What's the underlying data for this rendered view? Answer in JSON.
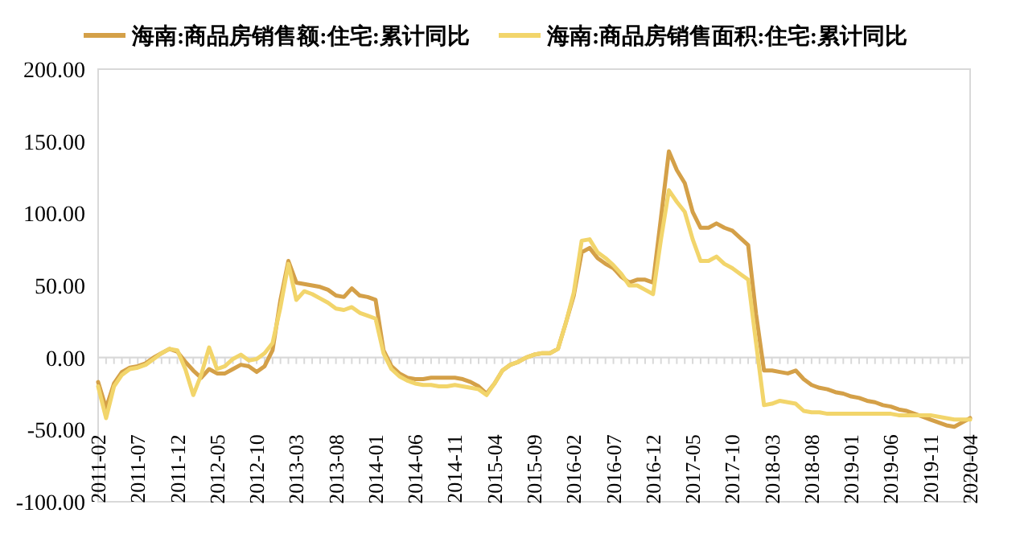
{
  "chart_data": {
    "type": "line",
    "legend": "top",
    "categories": [
      "2011-02",
      null,
      null,
      null,
      null,
      "2011-07",
      null,
      null,
      null,
      null,
      "2011-12",
      null,
      null,
      null,
      null,
      "2012-05",
      null,
      null,
      null,
      null,
      "2012-10",
      null,
      null,
      null,
      null,
      "2013-03",
      null,
      null,
      null,
      null,
      "2013-08",
      null,
      null,
      null,
      null,
      "2014-01",
      null,
      null,
      null,
      null,
      "2014-06",
      null,
      null,
      null,
      null,
      "2014-11",
      null,
      null,
      null,
      null,
      "2015-04",
      null,
      null,
      null,
      null,
      "2015-09",
      null,
      null,
      null,
      null,
      "2016-02",
      null,
      null,
      null,
      null,
      "2016-07",
      null,
      null,
      null,
      null,
      "2016-12",
      null,
      null,
      null,
      null,
      "2017-05",
      null,
      null,
      null,
      null,
      "2017-10",
      null,
      null,
      null,
      null,
      "2018-03",
      null,
      null,
      null,
      null,
      "2018-08",
      null,
      null,
      null,
      null,
      "2019-01",
      null,
      null,
      null,
      null,
      "2019-06",
      null,
      null,
      null,
      null,
      "2019-11",
      null,
      null,
      null,
      null,
      "2020-04"
    ],
    "ylim": [
      -100,
      200
    ],
    "yticks": [
      {
        "value": -100,
        "label": "-100.00"
      },
      {
        "value": -50,
        "label": "-50.00"
      },
      {
        "value": 0,
        "label": "0.00"
      },
      {
        "value": 50,
        "label": "50.00"
      },
      {
        "value": 100,
        "label": "100.00"
      },
      {
        "value": 150,
        "label": "150.00"
      },
      {
        "value": 200,
        "label": "200.00"
      }
    ],
    "series": [
      {
        "name": "海南:商品房销售额:住宅:累计同比",
        "color": "#d4a048",
        "values": [
          -17,
          -35,
          -18,
          -10,
          -7,
          -6,
          -4,
          0,
          3,
          6,
          4,
          -3,
          -9,
          -14,
          -8,
          -11,
          -11,
          -8,
          -5,
          -6,
          -10,
          -6,
          5,
          40,
          67,
          52,
          51,
          50,
          49,
          47,
          43,
          42,
          48,
          43,
          42,
          40,
          5,
          -6,
          -11,
          -14,
          -15,
          -15,
          -14,
          -14,
          -14,
          -14,
          -15,
          -17,
          -20,
          -25,
          -18,
          -9,
          -5,
          -3,
          0,
          2,
          3,
          3,
          6,
          24,
          43,
          73,
          76,
          69,
          65,
          62,
          56,
          52,
          54,
          54,
          52,
          97,
          143,
          130,
          121,
          101,
          90,
          90,
          93,
          90,
          88,
          83,
          78,
          30,
          -9,
          -9,
          -10,
          -11,
          -9,
          -15,
          -19,
          -21,
          -22,
          -24,
          -25,
          -27,
          -28,
          -30,
          -31,
          -33,
          -34,
          -36,
          -37,
          -39,
          -41,
          -43,
          -45,
          -47,
          -48,
          -45,
          -42
        ]
      },
      {
        "name": "海南:商品房销售面积:住宅:累计同比",
        "color": "#f2d56b",
        "values": [
          -20,
          -42,
          -20,
          -12,
          -8,
          -7,
          -5,
          -1,
          3,
          6,
          5,
          -8,
          -26,
          -12,
          7,
          -8,
          -6,
          -1,
          2,
          -2,
          -1,
          3,
          10,
          35,
          65,
          40,
          46,
          44,
          41,
          38,
          34,
          33,
          35,
          31,
          29,
          27,
          3,
          -8,
          -13,
          -16,
          -18,
          -19,
          -19,
          -20,
          -20,
          -19,
          -20,
          -21,
          -22,
          -26,
          -18,
          -9,
          -5,
          -3,
          0,
          2,
          3,
          3,
          6,
          24,
          45,
          81,
          82,
          73,
          69,
          64,
          58,
          50,
          50,
          47,
          44,
          82,
          116,
          108,
          101,
          82,
          67,
          67,
          70,
          65,
          62,
          58,
          54,
          10,
          -33,
          -32,
          -30,
          -31,
          -32,
          -37,
          -38,
          -38,
          -39,
          -39,
          -39,
          -39,
          -39,
          -39,
          -39,
          -39,
          -39,
          -40,
          -40,
          -40,
          -40,
          -40,
          -41,
          -42,
          -43,
          -43,
          -43
        ]
      }
    ]
  }
}
